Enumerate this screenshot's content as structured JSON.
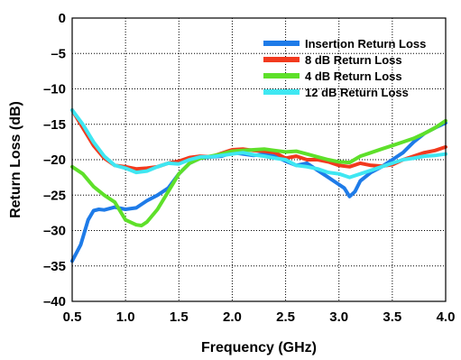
{
  "chart_data": {
    "type": "line",
    "title": "",
    "xlabel": "Frequency (GHz)",
    "ylabel": "Return Loss (dB)",
    "xlim": [
      0.5,
      4.0
    ],
    "ylim": [
      -40,
      0
    ],
    "xticks": [
      0.5,
      1.0,
      1.5,
      2.0,
      2.5,
      3.0,
      3.5,
      4.0
    ],
    "xtick_labels": [
      "0.5",
      "1.0",
      "1.5",
      "2.0",
      "2.5",
      "3.0",
      "3.5",
      "4.0"
    ],
    "yticks": [
      0,
      -5,
      -10,
      -15,
      -20,
      -25,
      -30,
      -35,
      -40
    ],
    "ytick_labels": [
      "0",
      "–5",
      "–10",
      "–15",
      "–20",
      "–25",
      "–30",
      "–35",
      "–40"
    ],
    "grid": true,
    "legend_position": "top-right",
    "series": [
      {
        "name": "Insertion Return Loss",
        "color": "#1e7be8",
        "x": [
          0.5,
          0.58,
          0.65,
          0.7,
          0.75,
          0.8,
          0.9,
          1.0,
          1.1,
          1.2,
          1.3,
          1.4,
          1.5,
          1.6,
          1.7,
          1.8,
          1.9,
          2.0,
          2.1,
          2.2,
          2.3,
          2.4,
          2.5,
          2.6,
          2.7,
          2.8,
          2.9,
          3.0,
          3.05,
          3.1,
          3.15,
          3.2,
          3.3,
          3.4,
          3.5,
          3.6,
          3.7,
          3.8,
          3.9,
          4.0
        ],
        "y": [
          -34.3,
          -32.0,
          -28.5,
          -27.2,
          -27.0,
          -27.1,
          -26.7,
          -27.0,
          -26.8,
          -25.8,
          -25.0,
          -24.0,
          -22.0,
          -20.5,
          -19.8,
          -19.6,
          -19.5,
          -19.0,
          -19.2,
          -19.4,
          -19.2,
          -19.5,
          -20.2,
          -20.8,
          -20.5,
          -21.5,
          -22.5,
          -23.5,
          -24.0,
          -25.2,
          -24.5,
          -23.0,
          -21.8,
          -21.0,
          -20.0,
          -19.0,
          -17.5,
          -16.3,
          -15.5,
          -14.8
        ]
      },
      {
        "name": "8 dB Return Loss",
        "color": "#f23a1e",
        "x": [
          0.5,
          0.6,
          0.7,
          0.8,
          0.9,
          1.0,
          1.1,
          1.2,
          1.3,
          1.4,
          1.5,
          1.6,
          1.7,
          1.8,
          1.9,
          2.0,
          2.1,
          2.2,
          2.3,
          2.4,
          2.5,
          2.6,
          2.7,
          2.8,
          2.9,
          3.0,
          3.1,
          3.2,
          3.3,
          3.4,
          3.5,
          3.6,
          3.7,
          3.8,
          3.9,
          4.0
        ],
        "y": [
          -13.0,
          -15.5,
          -18.0,
          -19.8,
          -20.8,
          -21.0,
          -21.3,
          -21.2,
          -21.0,
          -20.5,
          -20.2,
          -19.7,
          -19.5,
          -19.6,
          -19.1,
          -18.6,
          -18.5,
          -18.7,
          -18.8,
          -19.0,
          -19.8,
          -19.5,
          -20.0,
          -20.0,
          -20.3,
          -20.8,
          -21.0,
          -20.5,
          -20.8,
          -20.9,
          -20.7,
          -20.0,
          -19.5,
          -19.0,
          -18.7,
          -18.2
        ]
      },
      {
        "name": "4 dB Return Loss",
        "color": "#5ee02a",
        "x": [
          0.5,
          0.6,
          0.7,
          0.8,
          0.9,
          1.0,
          1.1,
          1.15,
          1.2,
          1.3,
          1.4,
          1.5,
          1.6,
          1.7,
          1.8,
          1.9,
          2.0,
          2.1,
          2.2,
          2.3,
          2.4,
          2.5,
          2.6,
          2.7,
          2.8,
          2.9,
          3.0,
          3.1,
          3.2,
          3.3,
          3.4,
          3.5,
          3.6,
          3.7,
          3.8,
          3.9,
          4.0
        ],
        "y": [
          -21.0,
          -22.0,
          -23.8,
          -25.0,
          -26.0,
          -28.5,
          -29.2,
          -29.3,
          -28.8,
          -27.0,
          -24.5,
          -22.0,
          -20.5,
          -19.8,
          -19.5,
          -19.2,
          -18.8,
          -18.7,
          -18.6,
          -18.5,
          -18.7,
          -18.9,
          -18.8,
          -19.2,
          -19.6,
          -20.0,
          -20.3,
          -20.4,
          -19.5,
          -19.0,
          -18.5,
          -18.0,
          -17.5,
          -17.0,
          -16.3,
          -15.5,
          -14.5
        ]
      },
      {
        "name": "12 dB Return Loss",
        "color": "#3fe7f2",
        "x": [
          0.5,
          0.6,
          0.7,
          0.8,
          0.9,
          1.0,
          1.1,
          1.2,
          1.3,
          1.4,
          1.5,
          1.6,
          1.7,
          1.8,
          1.9,
          2.0,
          2.1,
          2.2,
          2.3,
          2.4,
          2.5,
          2.6,
          2.7,
          2.8,
          2.9,
          3.0,
          3.1,
          3.2,
          3.3,
          3.4,
          3.5,
          3.6,
          3.7,
          3.8,
          3.9,
          4.0
        ],
        "y": [
          -13.0,
          -15.0,
          -17.5,
          -19.5,
          -20.8,
          -21.2,
          -21.8,
          -21.6,
          -21.0,
          -20.5,
          -20.6,
          -20.0,
          -19.6,
          -19.6,
          -19.4,
          -19.2,
          -19.0,
          -19.3,
          -19.5,
          -19.8,
          -20.0,
          -20.8,
          -21.0,
          -21.3,
          -21.8,
          -22.0,
          -22.5,
          -22.0,
          -21.5,
          -21.0,
          -20.5,
          -20.0,
          -19.8,
          -19.5,
          -19.4,
          -19.2
        ]
      }
    ]
  }
}
